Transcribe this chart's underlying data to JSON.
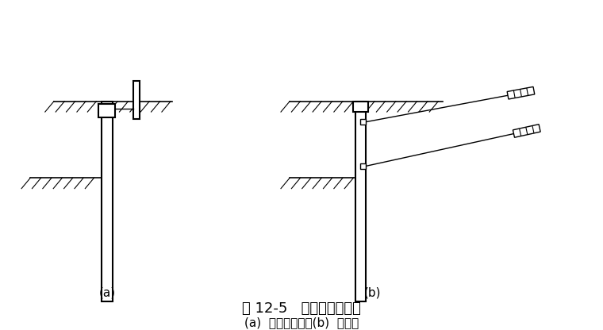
{
  "title1": "图 12-5   拉锚式支护结构",
  "title2": "(a)  地面拉锚式；(b)  锚杆式",
  "label_a": "(a)",
  "label_b": "(b)",
  "bg_color": "#ffffff",
  "line_color": "#000000",
  "hatch_color": "#000000",
  "title_fontsize": 13,
  "subtitle_fontsize": 11
}
